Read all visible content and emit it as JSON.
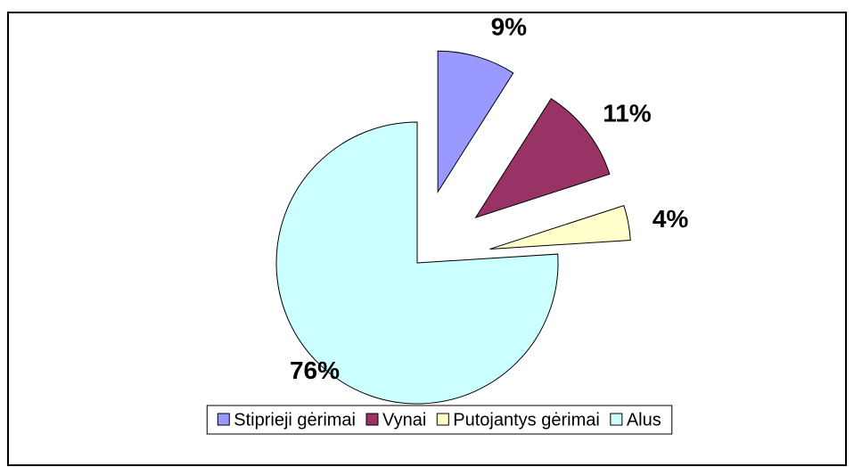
{
  "chart_data": {
    "type": "pie",
    "categories": [
      "Stiprieji gėrimai",
      "Vynai",
      "Putojantys gėrimai",
      "Alus"
    ],
    "values": [
      9,
      11,
      4,
      76
    ],
    "value_labels": [
      "9%",
      "11%",
      "4%",
      "76%"
    ],
    "colors": [
      "#9999ff",
      "#993366",
      "#ffffcc",
      "#ccffff"
    ],
    "legend": "bottom"
  }
}
